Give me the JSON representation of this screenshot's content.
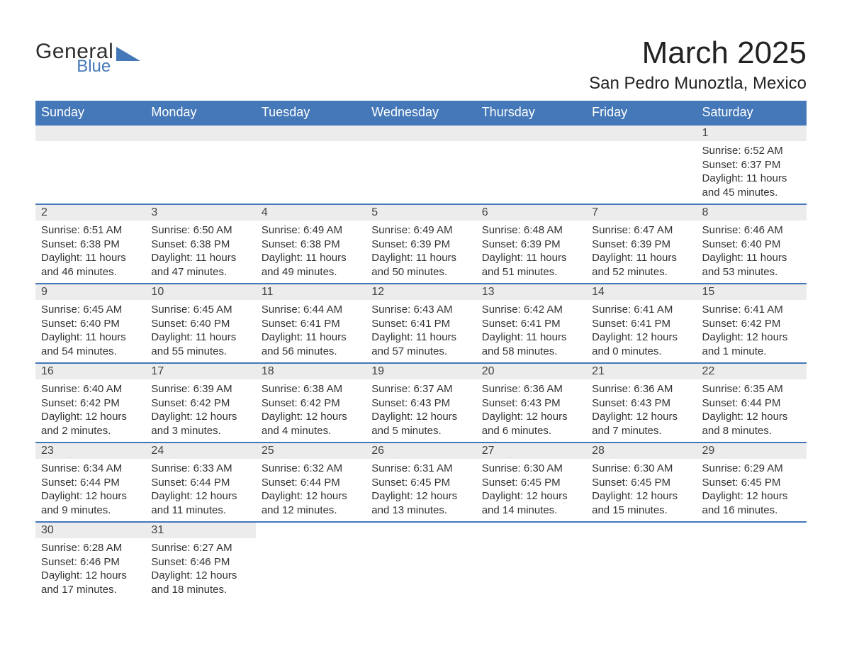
{
  "logo": {
    "text_top": "General",
    "text_bottom": "Blue",
    "shape_color": "#4478b8"
  },
  "title": {
    "month": "March 2025",
    "location": "San Pedro Munoztla, Mexico"
  },
  "colors": {
    "header_bg": "#4478b8",
    "header_fg": "#ffffff",
    "daynum_bg": "#ececec",
    "daynum_fg": "#444444",
    "body_fg": "#333333",
    "row_border": "#4478b8"
  },
  "weekdays": [
    "Sunday",
    "Monday",
    "Tuesday",
    "Wednesday",
    "Thursday",
    "Friday",
    "Saturday"
  ],
  "weeks": [
    [
      {
        "empty": true
      },
      {
        "empty": true
      },
      {
        "empty": true
      },
      {
        "empty": true
      },
      {
        "empty": true
      },
      {
        "empty": true
      },
      {
        "n": "1",
        "l1": "Sunrise: 6:52 AM",
        "l2": "Sunset: 6:37 PM",
        "l3": "Daylight: 11 hours",
        "l4": "and 45 minutes."
      }
    ],
    [
      {
        "n": "2",
        "l1": "Sunrise: 6:51 AM",
        "l2": "Sunset: 6:38 PM",
        "l3": "Daylight: 11 hours",
        "l4": "and 46 minutes."
      },
      {
        "n": "3",
        "l1": "Sunrise: 6:50 AM",
        "l2": "Sunset: 6:38 PM",
        "l3": "Daylight: 11 hours",
        "l4": "and 47 minutes."
      },
      {
        "n": "4",
        "l1": "Sunrise: 6:49 AM",
        "l2": "Sunset: 6:38 PM",
        "l3": "Daylight: 11 hours",
        "l4": "and 49 minutes."
      },
      {
        "n": "5",
        "l1": "Sunrise: 6:49 AM",
        "l2": "Sunset: 6:39 PM",
        "l3": "Daylight: 11 hours",
        "l4": "and 50 minutes."
      },
      {
        "n": "6",
        "l1": "Sunrise: 6:48 AM",
        "l2": "Sunset: 6:39 PM",
        "l3": "Daylight: 11 hours",
        "l4": "and 51 minutes."
      },
      {
        "n": "7",
        "l1": "Sunrise: 6:47 AM",
        "l2": "Sunset: 6:39 PM",
        "l3": "Daylight: 11 hours",
        "l4": "and 52 minutes."
      },
      {
        "n": "8",
        "l1": "Sunrise: 6:46 AM",
        "l2": "Sunset: 6:40 PM",
        "l3": "Daylight: 11 hours",
        "l4": "and 53 minutes."
      }
    ],
    [
      {
        "n": "9",
        "l1": "Sunrise: 6:45 AM",
        "l2": "Sunset: 6:40 PM",
        "l3": "Daylight: 11 hours",
        "l4": "and 54 minutes."
      },
      {
        "n": "10",
        "l1": "Sunrise: 6:45 AM",
        "l2": "Sunset: 6:40 PM",
        "l3": "Daylight: 11 hours",
        "l4": "and 55 minutes."
      },
      {
        "n": "11",
        "l1": "Sunrise: 6:44 AM",
        "l2": "Sunset: 6:41 PM",
        "l3": "Daylight: 11 hours",
        "l4": "and 56 minutes."
      },
      {
        "n": "12",
        "l1": "Sunrise: 6:43 AM",
        "l2": "Sunset: 6:41 PM",
        "l3": "Daylight: 11 hours",
        "l4": "and 57 minutes."
      },
      {
        "n": "13",
        "l1": "Sunrise: 6:42 AM",
        "l2": "Sunset: 6:41 PM",
        "l3": "Daylight: 11 hours",
        "l4": "and 58 minutes."
      },
      {
        "n": "14",
        "l1": "Sunrise: 6:41 AM",
        "l2": "Sunset: 6:41 PM",
        "l3": "Daylight: 12 hours",
        "l4": "and 0 minutes."
      },
      {
        "n": "15",
        "l1": "Sunrise: 6:41 AM",
        "l2": "Sunset: 6:42 PM",
        "l3": "Daylight: 12 hours",
        "l4": "and 1 minute."
      }
    ],
    [
      {
        "n": "16",
        "l1": "Sunrise: 6:40 AM",
        "l2": "Sunset: 6:42 PM",
        "l3": "Daylight: 12 hours",
        "l4": "and 2 minutes."
      },
      {
        "n": "17",
        "l1": "Sunrise: 6:39 AM",
        "l2": "Sunset: 6:42 PM",
        "l3": "Daylight: 12 hours",
        "l4": "and 3 minutes."
      },
      {
        "n": "18",
        "l1": "Sunrise: 6:38 AM",
        "l2": "Sunset: 6:42 PM",
        "l3": "Daylight: 12 hours",
        "l4": "and 4 minutes."
      },
      {
        "n": "19",
        "l1": "Sunrise: 6:37 AM",
        "l2": "Sunset: 6:43 PM",
        "l3": "Daylight: 12 hours",
        "l4": "and 5 minutes."
      },
      {
        "n": "20",
        "l1": "Sunrise: 6:36 AM",
        "l2": "Sunset: 6:43 PM",
        "l3": "Daylight: 12 hours",
        "l4": "and 6 minutes."
      },
      {
        "n": "21",
        "l1": "Sunrise: 6:36 AM",
        "l2": "Sunset: 6:43 PM",
        "l3": "Daylight: 12 hours",
        "l4": "and 7 minutes."
      },
      {
        "n": "22",
        "l1": "Sunrise: 6:35 AM",
        "l2": "Sunset: 6:44 PM",
        "l3": "Daylight: 12 hours",
        "l4": "and 8 minutes."
      }
    ],
    [
      {
        "n": "23",
        "l1": "Sunrise: 6:34 AM",
        "l2": "Sunset: 6:44 PM",
        "l3": "Daylight: 12 hours",
        "l4": "and 9 minutes."
      },
      {
        "n": "24",
        "l1": "Sunrise: 6:33 AM",
        "l2": "Sunset: 6:44 PM",
        "l3": "Daylight: 12 hours",
        "l4": "and 11 minutes."
      },
      {
        "n": "25",
        "l1": "Sunrise: 6:32 AM",
        "l2": "Sunset: 6:44 PM",
        "l3": "Daylight: 12 hours",
        "l4": "and 12 minutes."
      },
      {
        "n": "26",
        "l1": "Sunrise: 6:31 AM",
        "l2": "Sunset: 6:45 PM",
        "l3": "Daylight: 12 hours",
        "l4": "and 13 minutes."
      },
      {
        "n": "27",
        "l1": "Sunrise: 6:30 AM",
        "l2": "Sunset: 6:45 PM",
        "l3": "Daylight: 12 hours",
        "l4": "and 14 minutes."
      },
      {
        "n": "28",
        "l1": "Sunrise: 6:30 AM",
        "l2": "Sunset: 6:45 PM",
        "l3": "Daylight: 12 hours",
        "l4": "and 15 minutes."
      },
      {
        "n": "29",
        "l1": "Sunrise: 6:29 AM",
        "l2": "Sunset: 6:45 PM",
        "l3": "Daylight: 12 hours",
        "l4": "and 16 minutes."
      }
    ],
    [
      {
        "n": "30",
        "l1": "Sunrise: 6:28 AM",
        "l2": "Sunset: 6:46 PM",
        "l3": "Daylight: 12 hours",
        "l4": "and 17 minutes."
      },
      {
        "n": "31",
        "l1": "Sunrise: 6:27 AM",
        "l2": "Sunset: 6:46 PM",
        "l3": "Daylight: 12 hours",
        "l4": "and 18 minutes."
      },
      {
        "empty": true
      },
      {
        "empty": true
      },
      {
        "empty": true
      },
      {
        "empty": true
      },
      {
        "empty": true
      }
    ]
  ]
}
